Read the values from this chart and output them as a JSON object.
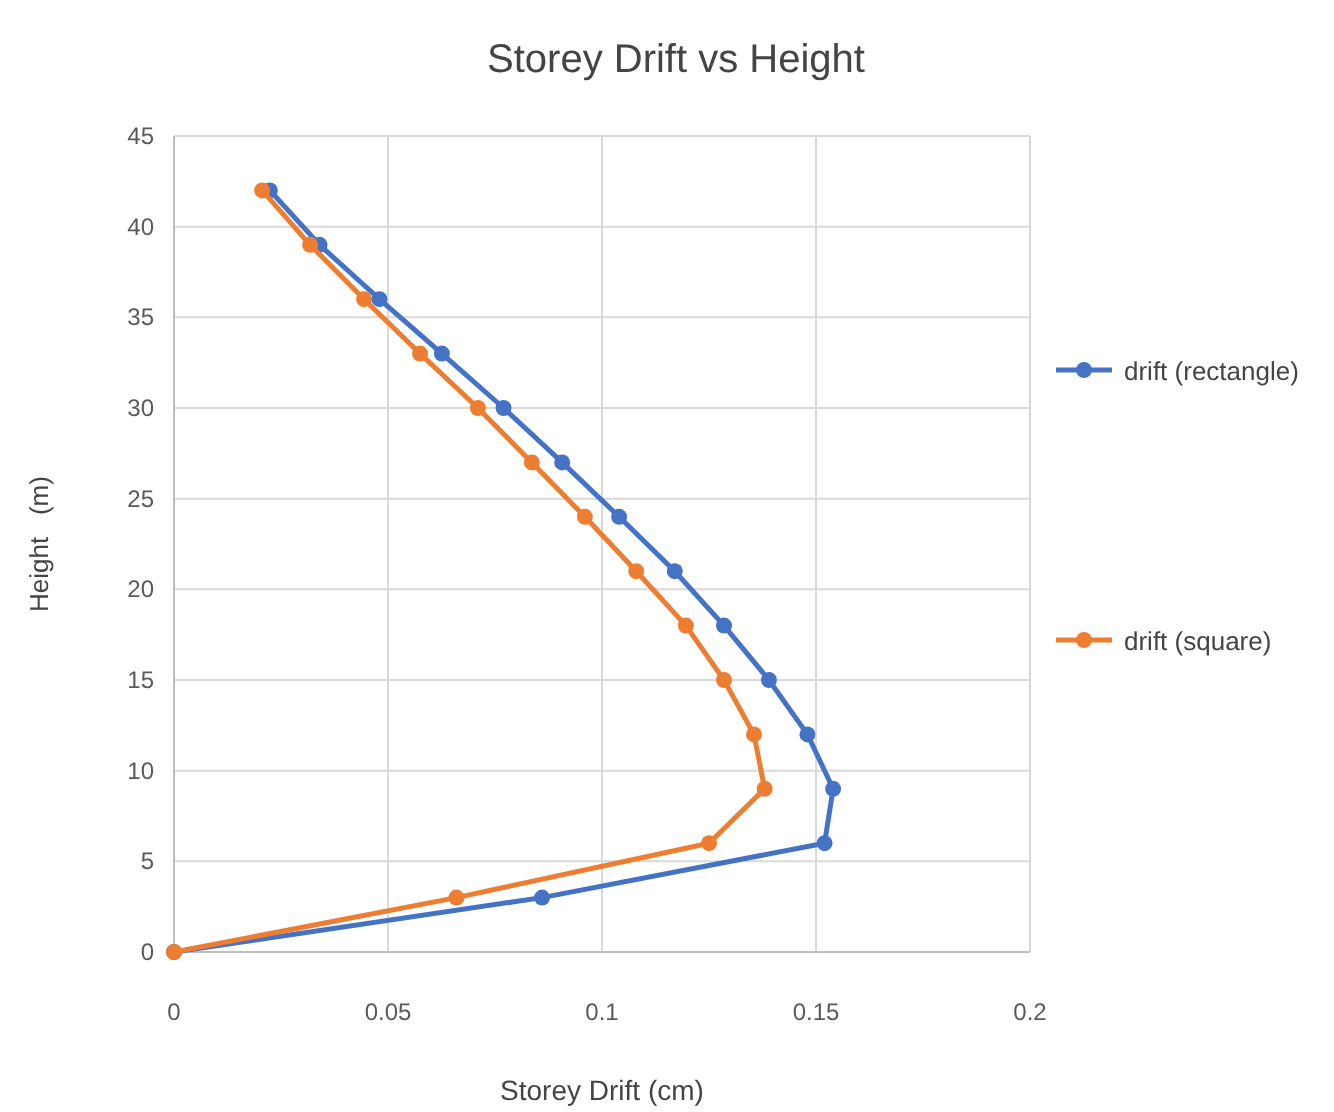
{
  "chart_data": {
    "type": "line",
    "title": "Storey Drift vs Height",
    "xlabel": "Storey Drift (cm)",
    "ylabel": "Height   (m)",
    "xlim": [
      0,
      0.2
    ],
    "xticks": [
      0,
      0.05,
      0.1,
      0.15,
      0.2
    ],
    "ylim": [
      0,
      45
    ],
    "yticks": [
      0,
      5,
      10,
      15,
      20,
      25,
      30,
      35,
      40,
      45
    ],
    "grid": true,
    "legend": "right",
    "marker": "circle",
    "line_style": "solid",
    "series": [
      {
        "name": "drift (rectangle)",
        "color": "#4472c4",
        "x": [
          0,
          0.086,
          0.152,
          0.154,
          0.148,
          0.139,
          0.1285,
          0.117,
          0.104,
          0.0907,
          0.077,
          0.0626,
          0.048,
          0.034,
          0.0224
        ],
        "values": [
          0,
          3,
          6,
          9,
          12,
          15,
          18,
          21,
          24,
          27,
          30,
          33,
          36,
          39,
          42
        ]
      },
      {
        "name": "drift (square)",
        "color": "#ed7d31",
        "x": [
          0,
          0.066,
          0.125,
          0.138,
          0.1355,
          0.1285,
          0.1196,
          0.108,
          0.096,
          0.0836,
          0.071,
          0.0575,
          0.0444,
          0.0318,
          0.0206
        ],
        "values": [
          0,
          3,
          6,
          9,
          12,
          15,
          18,
          21,
          24,
          27,
          30,
          33,
          36,
          39,
          42
        ]
      }
    ]
  }
}
